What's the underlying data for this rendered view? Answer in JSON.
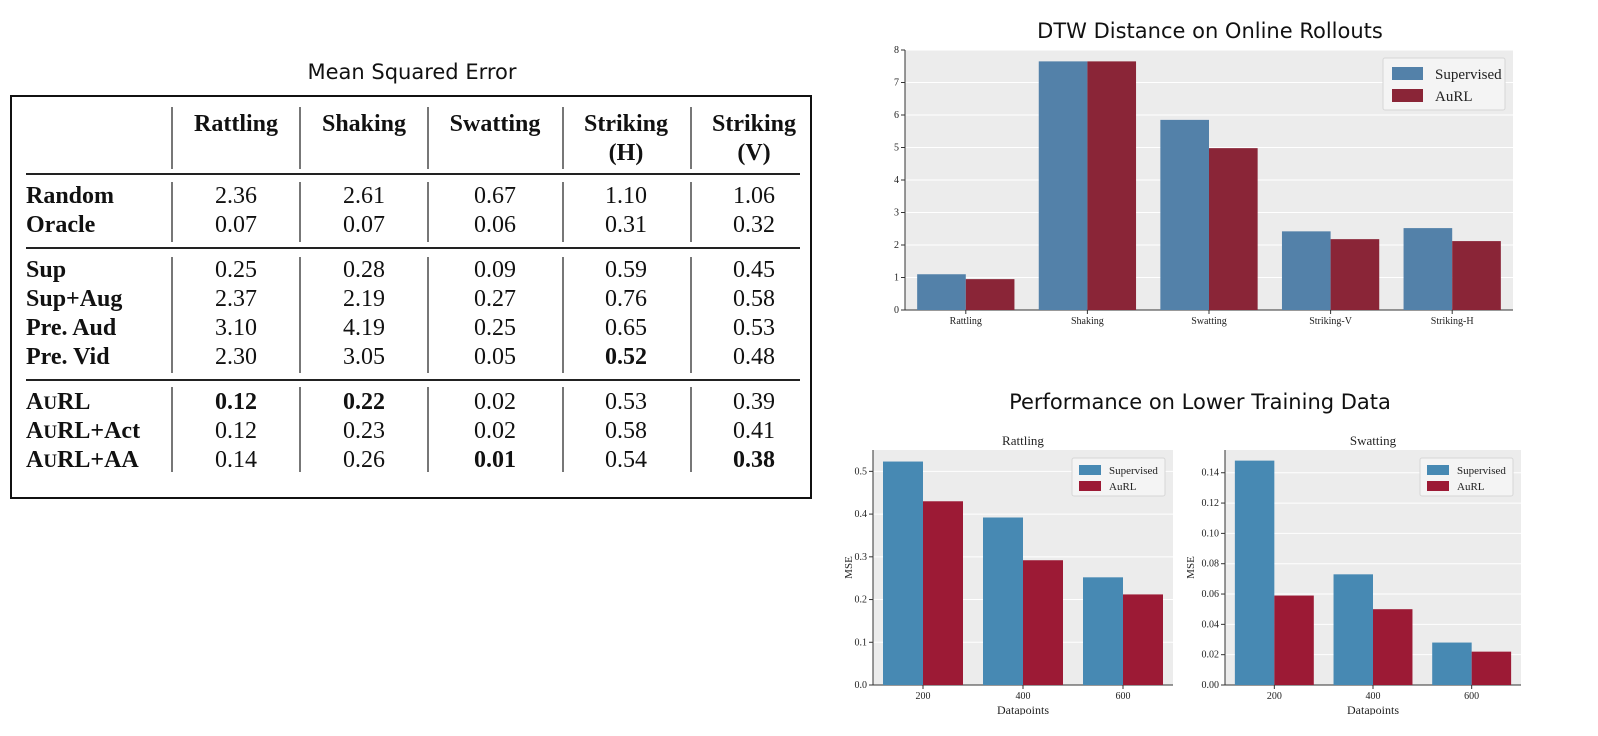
{
  "table": {
    "title": "Mean Squared Error",
    "columns": [
      {
        "line1": "Rattling",
        "line2": ""
      },
      {
        "line1": "Shaking",
        "line2": ""
      },
      {
        "line1": "Swatting",
        "line2": ""
      },
      {
        "line1": "Striking",
        "line2": "(H)"
      },
      {
        "line1": "Striking",
        "line2": "(V)"
      }
    ],
    "groups": [
      [
        {
          "label": "Random",
          "values": [
            "2.36",
            "2.61",
            "0.67",
            "1.10",
            "1.06"
          ],
          "bold": [
            false,
            false,
            false,
            false,
            false
          ]
        },
        {
          "label": "Oracle",
          "values": [
            "0.07",
            "0.07",
            "0.06",
            "0.31",
            "0.32"
          ],
          "bold": [
            false,
            false,
            false,
            false,
            false
          ]
        }
      ],
      [
        {
          "label": "Sup",
          "values": [
            "0.25",
            "0.28",
            "0.09",
            "0.59",
            "0.45"
          ],
          "bold": [
            false,
            false,
            false,
            false,
            false
          ]
        },
        {
          "label": "Sup+Aug",
          "values": [
            "2.37",
            "2.19",
            "0.27",
            "0.76",
            "0.58"
          ],
          "bold": [
            false,
            false,
            false,
            false,
            false
          ]
        },
        {
          "label": "Pre. Aud",
          "values": [
            "3.10",
            "4.19",
            "0.25",
            "0.65",
            "0.53"
          ],
          "bold": [
            false,
            false,
            false,
            false,
            false
          ]
        },
        {
          "label": "Pre. Vid",
          "values": [
            "2.30",
            "3.05",
            "0.05",
            "0.52",
            "0.48"
          ],
          "bold": [
            false,
            false,
            false,
            true,
            false
          ]
        }
      ],
      [
        {
          "label": "AuRL",
          "values": [
            "0.12",
            "0.22",
            "0.02",
            "0.53",
            "0.39"
          ],
          "bold": [
            true,
            true,
            false,
            false,
            false
          ]
        },
        {
          "label": "AuRL+Act",
          "values": [
            "0.12",
            "0.23",
            "0.02",
            "0.58",
            "0.41"
          ],
          "bold": [
            false,
            false,
            false,
            false,
            false
          ]
        },
        {
          "label": "AuRL+AA",
          "values": [
            "0.14",
            "0.26",
            "0.01",
            "0.54",
            "0.38"
          ],
          "bold": [
            false,
            false,
            true,
            false,
            true
          ]
        }
      ]
    ]
  },
  "lower_heading": "Performance on Lower Training Data",
  "colors": {
    "supervised": "#5381a9",
    "aurl": "#8a2537",
    "supervised_small": "#4789b3",
    "aurl_small": "#9c1a35",
    "plot_bg": "#ececec",
    "grid": "#ffffff"
  },
  "chart_data": [
    {
      "type": "bar",
      "title": "DTW Distance on Online Rollouts",
      "categories": [
        "Rattling",
        "Shaking",
        "Swatting",
        "Striking-V",
        "Striking-H"
      ],
      "series": [
        {
          "name": "Supervised",
          "values": [
            1.1,
            7.65,
            5.85,
            2.42,
            2.52
          ]
        },
        {
          "name": "AuRL",
          "values": [
            0.95,
            7.65,
            4.98,
            2.18,
            2.12
          ]
        }
      ],
      "xlabel": "",
      "ylabel": "",
      "ylim": [
        0,
        8
      ],
      "yticks": [
        "0",
        "1",
        "2",
        "3",
        "4",
        "5",
        "6",
        "7",
        "8"
      ],
      "grid": true,
      "legend": "top-right"
    },
    {
      "type": "bar",
      "title": "Rattling",
      "categories": [
        "200",
        "400",
        "600"
      ],
      "series": [
        {
          "name": "Supervised",
          "values": [
            0.523,
            0.392,
            0.252
          ]
        },
        {
          "name": "AuRL",
          "values": [
            0.43,
            0.292,
            0.212
          ]
        }
      ],
      "xlabel": "Datapoints",
      "ylabel": "MSE",
      "ylim": [
        0,
        0.55
      ],
      "yticks": [
        "0.0",
        "0.1",
        "0.2",
        "0.3",
        "0.4",
        "0.5"
      ],
      "grid": true,
      "legend": "top-right"
    },
    {
      "type": "bar",
      "title": "Swatting",
      "categories": [
        "200",
        "400",
        "600"
      ],
      "series": [
        {
          "name": "Supervised",
          "values": [
            0.148,
            0.073,
            0.028
          ]
        },
        {
          "name": "AuRL",
          "values": [
            0.059,
            0.05,
            0.022
          ]
        }
      ],
      "xlabel": "Datapoints",
      "ylabel": "MSE",
      "ylim": [
        0,
        0.155
      ],
      "yticks": [
        "0.00",
        "0.02",
        "0.04",
        "0.06",
        "0.08",
        "0.10",
        "0.12",
        "0.14"
      ],
      "grid": true,
      "legend": "top-right"
    }
  ]
}
